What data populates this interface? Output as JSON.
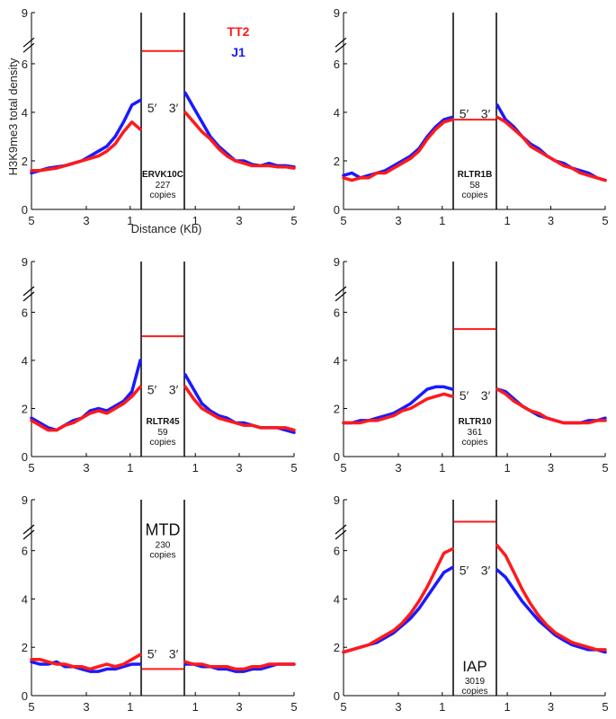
{
  "figure": {
    "ylabel": "H3K9me3 total density",
    "xlabel": "Distance (Kb)",
    "legend": [
      {
        "name": "TT2",
        "color": "#ff1a1a"
      },
      {
        "name": "J1",
        "color": "#1a1aff"
      }
    ],
    "end_labels": {
      "five": "5′",
      "three": "3′"
    }
  },
  "chart_data": [
    {
      "type": "line",
      "title": "ERVK10C",
      "copies": "227",
      "copies_label": "copies",
      "element_density": 6.75,
      "label_style": "small",
      "ylim": [
        0,
        9
      ],
      "y_ticks": [
        "0",
        "2",
        "4",
        "6",
        "9"
      ],
      "x_ticks": [
        "5",
        "3",
        "1",
        "1",
        "3",
        "5"
      ],
      "series": [
        {
          "name": "TT2",
          "color": "#ff1a1a",
          "left": [
            1.6,
            1.6,
            1.65,
            1.7,
            1.8,
            1.9,
            2.0,
            2.1,
            2.2,
            2.4,
            2.7,
            3.2,
            3.6,
            3.3
          ],
          "right": [
            4.0,
            3.6,
            3.2,
            2.9,
            2.5,
            2.2,
            2.0,
            1.9,
            1.8,
            1.8,
            1.8,
            1.75,
            1.75,
            1.7
          ]
        },
        {
          "name": "J1",
          "color": "#1a1aff",
          "left": [
            1.5,
            1.6,
            1.7,
            1.75,
            1.8,
            1.9,
            2.0,
            2.2,
            2.4,
            2.6,
            3.0,
            3.6,
            4.3,
            4.5
          ],
          "right": [
            4.8,
            4.2,
            3.6,
            3.0,
            2.6,
            2.3,
            2.0,
            2.0,
            1.85,
            1.8,
            1.9,
            1.8,
            1.8,
            1.75
          ]
        }
      ]
    },
    {
      "type": "line",
      "title": "RLTR1B",
      "copies": "58",
      "copies_label": "copies",
      "element_density": 3.7,
      "label_style": "small",
      "ylim": [
        0,
        9
      ],
      "y_ticks": [
        "0",
        "2",
        "4",
        "6",
        "9"
      ],
      "x_ticks": [
        "5",
        "3",
        "1",
        "1",
        "3",
        "5"
      ],
      "series": [
        {
          "name": "TT2",
          "color": "#ff1a1a",
          "left": [
            1.3,
            1.2,
            1.3,
            1.3,
            1.5,
            1.5,
            1.7,
            1.9,
            2.1,
            2.4,
            2.9,
            3.3,
            3.6,
            3.7
          ],
          "right": [
            3.8,
            3.6,
            3.3,
            3.0,
            2.6,
            2.4,
            2.2,
            2.0,
            1.8,
            1.7,
            1.5,
            1.4,
            1.3,
            1.2
          ]
        },
        {
          "name": "J1",
          "color": "#1a1aff",
          "left": [
            1.4,
            1.5,
            1.3,
            1.4,
            1.5,
            1.6,
            1.8,
            2.0,
            2.2,
            2.5,
            3.0,
            3.4,
            3.7,
            3.8
          ],
          "right": [
            4.3,
            3.7,
            3.4,
            3.0,
            2.7,
            2.5,
            2.2,
            2.0,
            1.9,
            1.7,
            1.6,
            1.5,
            1.3,
            1.2
          ]
        }
      ]
    },
    {
      "type": "line",
      "title": "RLTR45",
      "copies": "59",
      "copies_label": "copies",
      "element_density": 5.0,
      "label_style": "small",
      "ylim": [
        0,
        9
      ],
      "y_ticks": [
        "0",
        "2",
        "4",
        "6",
        "9"
      ],
      "x_ticks": [
        "5",
        "3",
        "1",
        "1",
        "3",
        "5"
      ],
      "series": [
        {
          "name": "TT2",
          "color": "#ff1a1a",
          "left": [
            1.5,
            1.3,
            1.1,
            1.1,
            1.3,
            1.4,
            1.6,
            1.8,
            1.9,
            1.8,
            2.0,
            2.2,
            2.5,
            2.9
          ],
          "right": [
            2.9,
            2.4,
            2.0,
            1.8,
            1.6,
            1.5,
            1.4,
            1.3,
            1.3,
            1.2,
            1.2,
            1.2,
            1.2,
            1.1
          ]
        },
        {
          "name": "J1",
          "color": "#1a1aff",
          "left": [
            1.6,
            1.4,
            1.2,
            1.1,
            1.3,
            1.5,
            1.6,
            1.9,
            2.0,
            1.9,
            2.1,
            2.3,
            2.7,
            4.0
          ],
          "right": [
            3.4,
            2.8,
            2.2,
            1.9,
            1.7,
            1.6,
            1.4,
            1.4,
            1.3,
            1.2,
            1.2,
            1.2,
            1.1,
            1.0
          ]
        }
      ]
    },
    {
      "type": "line",
      "title": "RLTR10",
      "copies": "361",
      "copies_label": "copies",
      "element_density": 5.3,
      "label_style": "small",
      "ylim": [
        0,
        9
      ],
      "y_ticks": [
        "0",
        "2",
        "4",
        "6",
        "9"
      ],
      "x_ticks": [
        "5",
        "3",
        "1",
        "1",
        "3",
        "5"
      ],
      "series": [
        {
          "name": "TT2",
          "color": "#ff1a1a",
          "left": [
            1.4,
            1.4,
            1.4,
            1.5,
            1.5,
            1.6,
            1.7,
            1.9,
            2.0,
            2.2,
            2.4,
            2.5,
            2.6,
            2.5
          ],
          "right": [
            2.8,
            2.6,
            2.3,
            2.1,
            1.9,
            1.8,
            1.6,
            1.5,
            1.4,
            1.4,
            1.4,
            1.4,
            1.5,
            1.5
          ]
        },
        {
          "name": "J1",
          "color": "#1a1aff",
          "left": [
            1.4,
            1.4,
            1.5,
            1.5,
            1.6,
            1.7,
            1.8,
            2.0,
            2.2,
            2.5,
            2.8,
            2.9,
            2.9,
            2.8
          ],
          "right": [
            2.8,
            2.7,
            2.4,
            2.1,
            1.9,
            1.7,
            1.6,
            1.5,
            1.4,
            1.4,
            1.4,
            1.5,
            1.5,
            1.6
          ]
        }
      ]
    },
    {
      "type": "line",
      "title": "MTD",
      "copies": "230",
      "copies_label": "copies",
      "element_density": 1.1,
      "label_style": "large",
      "ylim": [
        0,
        9
      ],
      "y_ticks": [
        "0",
        "2",
        "4",
        "6",
        "9"
      ],
      "x_ticks": [
        "5",
        "3",
        "1",
        "1",
        "3",
        "5"
      ],
      "series": [
        {
          "name": "TT2",
          "color": "#ff1a1a",
          "left": [
            1.5,
            1.5,
            1.4,
            1.3,
            1.3,
            1.2,
            1.2,
            1.1,
            1.2,
            1.3,
            1.2,
            1.3,
            1.5,
            1.7
          ],
          "right": [
            1.4,
            1.3,
            1.3,
            1.2,
            1.2,
            1.2,
            1.1,
            1.1,
            1.2,
            1.2,
            1.3,
            1.3,
            1.3,
            1.3
          ]
        },
        {
          "name": "J1",
          "color": "#1a1aff",
          "left": [
            1.4,
            1.3,
            1.3,
            1.4,
            1.2,
            1.2,
            1.1,
            1.0,
            1.0,
            1.1,
            1.1,
            1.2,
            1.3,
            1.3
          ],
          "right": [
            1.3,
            1.3,
            1.2,
            1.2,
            1.1,
            1.1,
            1.0,
            1.0,
            1.1,
            1.1,
            1.2,
            1.3,
            1.3,
            1.3
          ]
        }
      ]
    },
    {
      "type": "line",
      "title": "IAP",
      "copies": "3019",
      "copies_label": "copies",
      "element_density": 7.7,
      "label_style": "large",
      "ylim": [
        0,
        9
      ],
      "y_ticks": [
        "0",
        "2",
        "4",
        "6",
        "9"
      ],
      "x_ticks": [
        "5",
        "3",
        "1",
        "1",
        "3",
        "5"
      ],
      "series": [
        {
          "name": "TT2",
          "color": "#ff1a1a",
          "left": [
            1.8,
            1.9,
            2.0,
            2.1,
            2.3,
            2.5,
            2.7,
            3.0,
            3.4,
            3.9,
            4.5,
            5.2,
            5.9,
            6.1
          ],
          "right": [
            6.3,
            5.8,
            5.1,
            4.4,
            3.8,
            3.3,
            2.9,
            2.6,
            2.4,
            2.2,
            2.1,
            2.0,
            1.9,
            1.9
          ]
        },
        {
          "name": "J1",
          "color": "#1a1aff",
          "left": [
            1.8,
            1.9,
            2.0,
            2.1,
            2.2,
            2.4,
            2.6,
            2.9,
            3.2,
            3.6,
            4.1,
            4.6,
            5.1,
            5.3
          ],
          "right": [
            5.2,
            4.9,
            4.4,
            3.9,
            3.5,
            3.1,
            2.8,
            2.5,
            2.3,
            2.1,
            2.0,
            1.9,
            1.9,
            1.8
          ]
        }
      ]
    }
  ]
}
